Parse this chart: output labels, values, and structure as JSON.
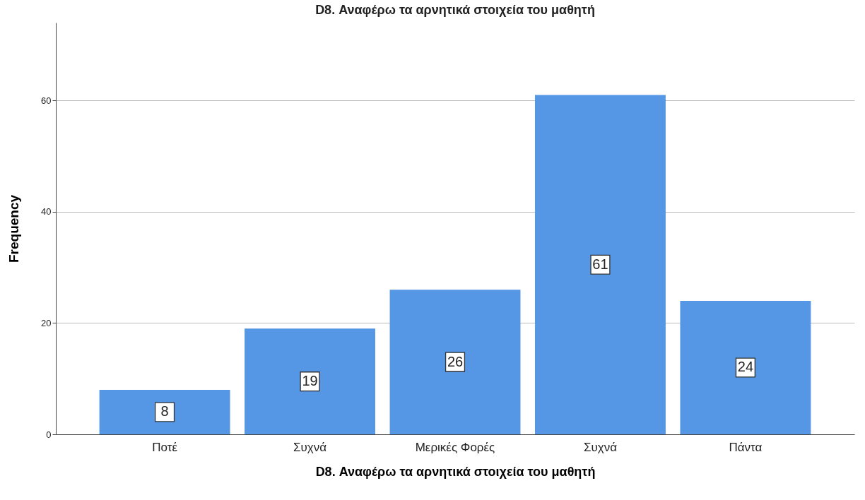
{
  "chart_data": {
    "type": "bar",
    "title": "D8. Αναφέρω τα αρνητικά στοιχεία του μαθητή",
    "xlabel": "D8. Αναφέρω τα αρνητικά στοιχεία του μαθητή",
    "ylabel": "Frequency",
    "categories": [
      "Ποτέ",
      "Συχνά",
      "Μερικές Φορές",
      "Συχνά",
      "Πάντα"
    ],
    "values": [
      8,
      19,
      26,
      61,
      24
    ],
    "color": "#5596e5",
    "ylim": [
      0,
      74
    ],
    "yticks": [
      0,
      20,
      40,
      60
    ],
    "grid": "y",
    "data_labels": true
  }
}
